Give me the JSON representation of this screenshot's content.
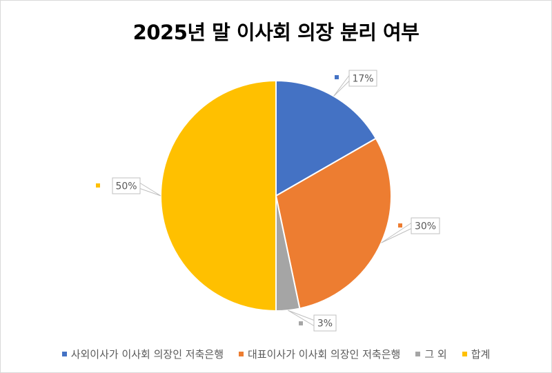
{
  "chart_data": {
    "type": "pie",
    "title": "2025년 말 이사회 의장 분리 여부",
    "categories": [
      "사외이사가 이사회 의장인 저축은행",
      "대표이사가 이사회 의장인 저축은행",
      "그 외",
      "합계"
    ],
    "values": [
      16.7,
      30.0,
      3.3,
      50.0
    ],
    "labels": [
      "17%",
      "30%",
      "3%",
      "50%"
    ],
    "colors": [
      "#4472C4",
      "#ED7D31",
      "#A5A5A5",
      "#FFC000"
    ],
    "start_angle_deg": 0,
    "direction": "clockwise",
    "legend_position": "bottom"
  },
  "legend": {
    "items": [
      {
        "label": "사외이사가 이사회 의장인 저축은행",
        "color": "#4472C4"
      },
      {
        "label": "대표이사가 이사회 의장인 저축은행",
        "color": "#ED7D31"
      },
      {
        "label": "그 외",
        "color": "#A5A5A5"
      },
      {
        "label": "합계",
        "color": "#FFC000"
      }
    ]
  },
  "data_labels": [
    "17%",
    "30%",
    "3%",
    "50%"
  ]
}
